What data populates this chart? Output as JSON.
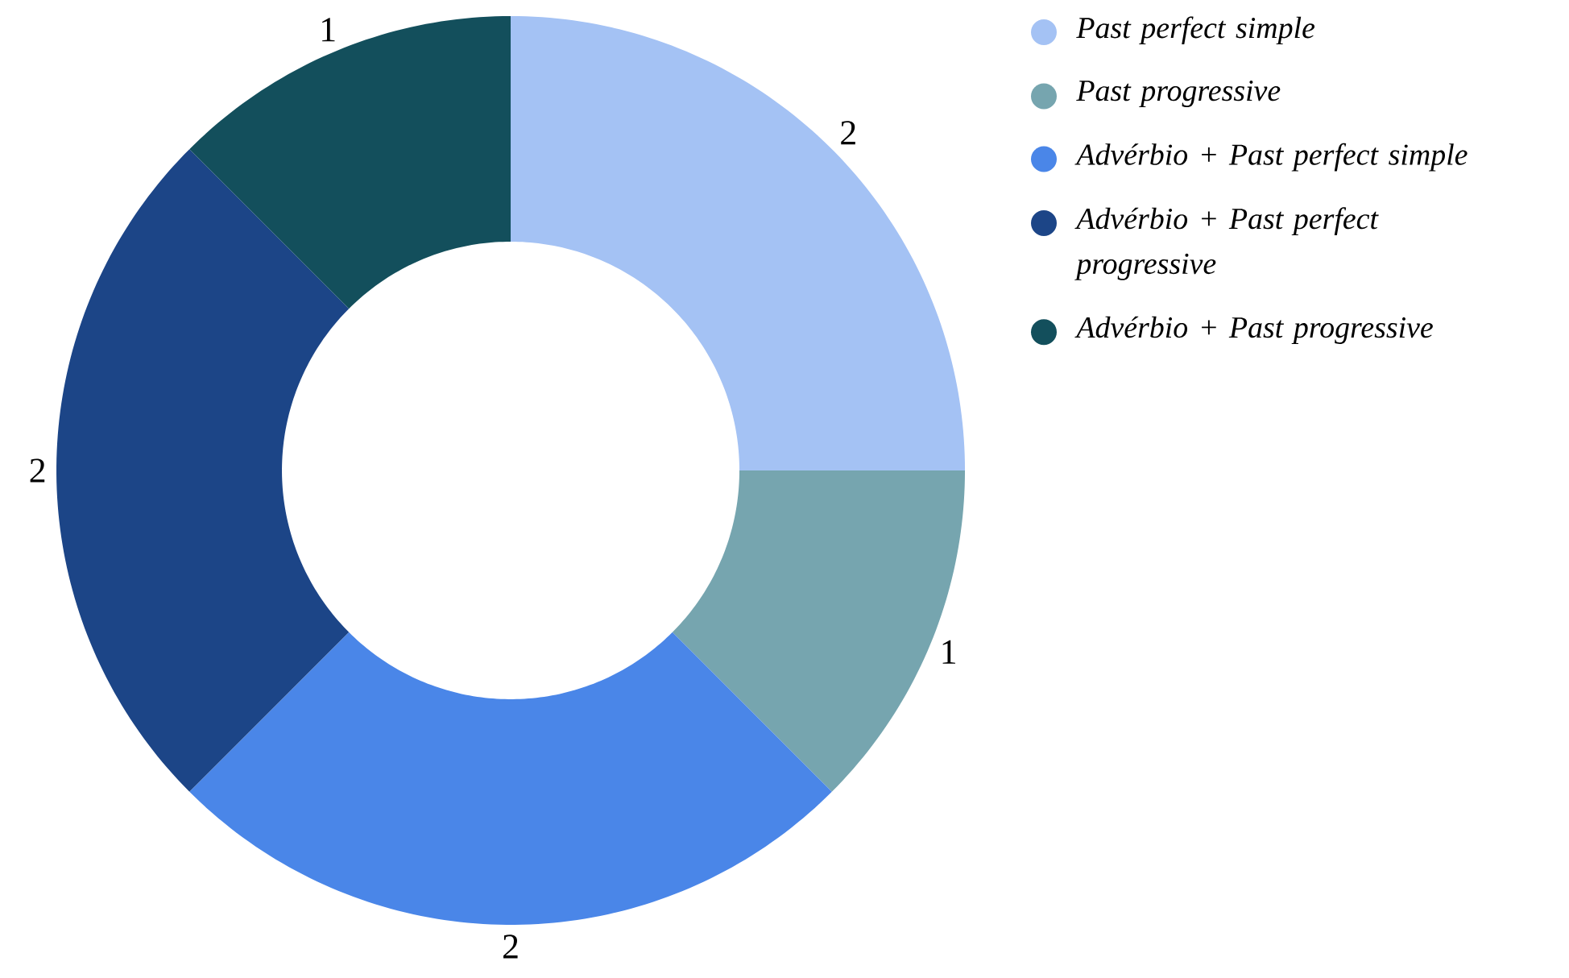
{
  "chart_data": {
    "type": "donut",
    "categories": [
      "Past perfect simple",
      "Past progressive",
      "Advérbio + Past perfect simple",
      "Advérbio + Past perfect progressive",
      "Advérbio + Past progressive"
    ],
    "values": [
      2,
      1,
      2,
      2,
      1
    ],
    "colors": [
      "#a4c2f4",
      "#76a5af",
      "#4a86e8",
      "#1c4587",
      "#134f5c"
    ],
    "value_labels": [
      "2",
      "1",
      "2",
      "2",
      "1"
    ],
    "legend": "top right"
  }
}
